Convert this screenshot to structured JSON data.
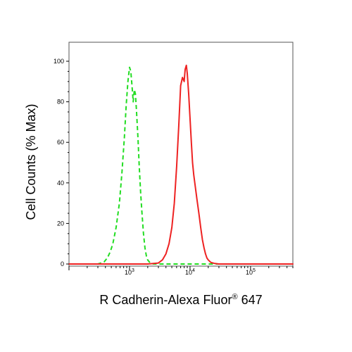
{
  "chart_data": {
    "type": "line",
    "xlabel": {
      "main": "R Cadherin-Alexa Fluor",
      "superscript": "®",
      "suffix": " 647"
    },
    "ylabel": "Cell Counts (% Max)",
    "x_scale": "log",
    "xlim": [
      100,
      500000
    ],
    "ylim": [
      0,
      100
    ],
    "yticks": [
      0,
      20,
      40,
      60,
      80,
      100
    ],
    "xticks": [
      {
        "value": 1000,
        "base": "10",
        "exp": "3"
      },
      {
        "value": 10000,
        "base": "10",
        "exp": "4"
      },
      {
        "value": 100000,
        "base": "10",
        "exp": "5"
      }
    ],
    "grid": false,
    "series": [
      {
        "color": "#22dd22",
        "style": "dashed",
        "x": [
          100,
          200,
          300,
          380,
          430,
          480,
          530,
          600,
          680,
          750,
          820,
          880,
          940,
          1000,
          1050,
          1100,
          1150,
          1200,
          1250,
          1300,
          1380,
          1450,
          1530,
          1600,
          1700,
          1800,
          1900,
          2000,
          2200,
          2500,
          3000,
          5000,
          10000,
          30000,
          100000,
          500000
        ],
        "y": [
          0,
          0,
          0,
          1,
          3,
          6,
          10,
          18,
          30,
          45,
          62,
          78,
          90,
          97,
          95,
          88,
          80,
          86,
          84,
          76,
          62,
          48,
          35,
          26,
          15,
          8,
          4,
          2,
          0.5,
          0,
          0,
          0,
          0,
          0,
          0,
          0
        ]
      },
      {
        "color": "#ee2222",
        "style": "solid",
        "x": [
          100,
          1000,
          2000,
          3000,
          3500,
          4000,
          4500,
          5000,
          5500,
          6000,
          6500,
          7000,
          7500,
          8000,
          8300,
          8700,
          9000,
          9500,
          10000,
          10500,
          11000,
          11500,
          12000,
          13000,
          14000,
          15000,
          16000,
          17000,
          18000,
          19000,
          20000,
          22000,
          25000,
          30000,
          50000,
          100000,
          500000
        ],
        "y": [
          0,
          0,
          0,
          0.5,
          2,
          5,
          10,
          18,
          30,
          48,
          68,
          88,
          92,
          90,
          96,
          98,
          94,
          84,
          72,
          60,
          50,
          44,
          40,
          32,
          25,
          18,
          12,
          8,
          5,
          3,
          2,
          0.8,
          0.3,
          0,
          0,
          0,
          0
        ]
      }
    ]
  }
}
